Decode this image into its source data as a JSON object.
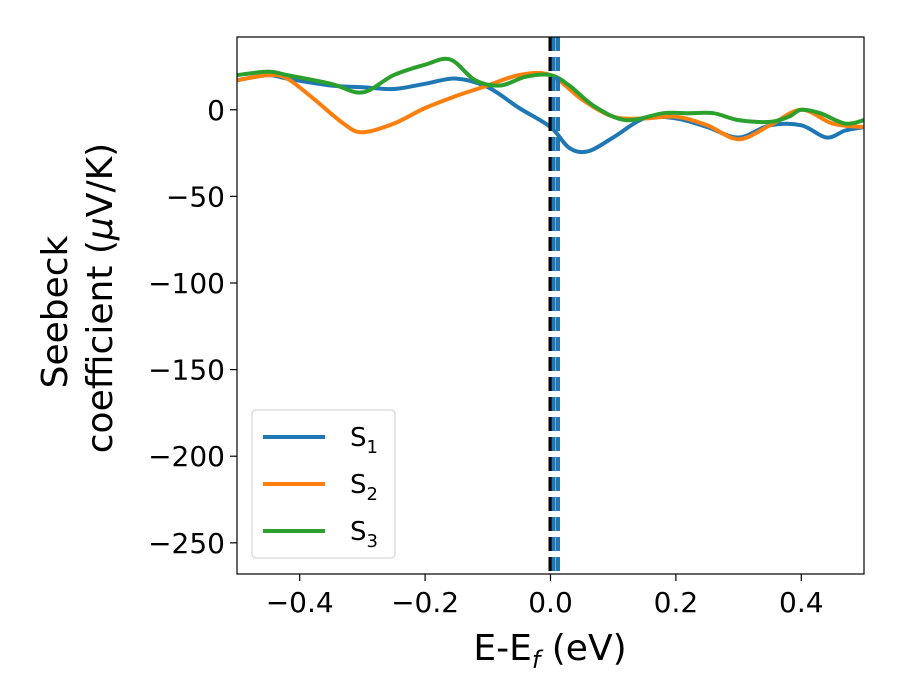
{
  "chart_data": {
    "type": "line",
    "xlabel": "E-E",
    "xlabel_sub": "f",
    "xlabel_unit": " (eV)",
    "ylabel_line1": "Seebeck",
    "ylabel_line2_pre": "coefficient  (",
    "ylabel_line2_mu": "μ",
    "ylabel_line2_post": "V/K)",
    "xlim": [
      -0.5,
      0.5
    ],
    "ylim": [
      -268,
      42
    ],
    "xticks": [
      -0.4,
      -0.2,
      0.0,
      0.2,
      0.4
    ],
    "xtick_labels": [
      "−0.4",
      "−0.2",
      "0.0",
      "0.2",
      "0.4"
    ],
    "yticks": [
      0,
      -50,
      -100,
      -150,
      -200,
      -250
    ],
    "ytick_labels": [
      "0",
      "−50",
      "−100",
      "−150",
      "−200",
      "−250"
    ],
    "grid": false,
    "legend_position": "lower-left",
    "vlines": [
      {
        "x": 0.0,
        "color": "#000000",
        "style": "dashed"
      },
      {
        "x": 0.005,
        "color": "#1f77b4",
        "style": "dashed"
      },
      {
        "x": 0.012,
        "color": "#1f77b4",
        "style": "dashed"
      }
    ],
    "series": [
      {
        "name": "S",
        "sub": "1",
        "color": "#1f77b4",
        "x": [
          -0.5,
          -0.45,
          -0.42,
          -0.35,
          -0.3,
          -0.25,
          -0.2,
          -0.15,
          -0.1,
          -0.05,
          0.0,
          0.03,
          0.06,
          0.1,
          0.15,
          0.2,
          0.25,
          0.3,
          0.35,
          0.4,
          0.44,
          0.47,
          0.5
        ],
        "y": [
          17,
          20,
          18,
          14,
          13,
          12,
          15,
          18,
          13,
          1,
          -10,
          -22,
          -24,
          -16,
          -5,
          -5,
          -10,
          -16,
          -9,
          -9,
          -16,
          -12,
          -10
        ]
      },
      {
        "name": "S",
        "sub": "2",
        "color": "#ff7f0e",
        "x": [
          -0.5,
          -0.45,
          -0.42,
          -0.38,
          -0.33,
          -0.3,
          -0.25,
          -0.2,
          -0.15,
          -0.1,
          -0.05,
          0.0,
          0.05,
          0.1,
          0.15,
          0.2,
          0.25,
          0.3,
          0.35,
          0.4,
          0.45,
          0.5
        ],
        "y": [
          17,
          20,
          18,
          7,
          -8,
          -13,
          -8,
          1,
          8,
          14,
          20,
          20,
          6,
          -4,
          -5,
          -4,
          -9,
          -17,
          -9,
          0,
          -8,
          -10
        ]
      },
      {
        "name": "S",
        "sub": "3",
        "color": "#2ca02c",
        "x": [
          -0.5,
          -0.45,
          -0.42,
          -0.35,
          -0.3,
          -0.25,
          -0.2,
          -0.16,
          -0.12,
          -0.08,
          -0.04,
          0.0,
          0.03,
          0.07,
          0.12,
          0.18,
          0.22,
          0.26,
          0.3,
          0.35,
          0.38,
          0.4,
          0.43,
          0.47,
          0.5
        ],
        "y": [
          20,
          22,
          20,
          15,
          10,
          20,
          26,
          29,
          17,
          14,
          19,
          20,
          14,
          2,
          -6,
          -2,
          -2,
          -2,
          -6,
          -7,
          -4,
          0,
          -2,
          -8,
          -6
        ]
      }
    ]
  }
}
